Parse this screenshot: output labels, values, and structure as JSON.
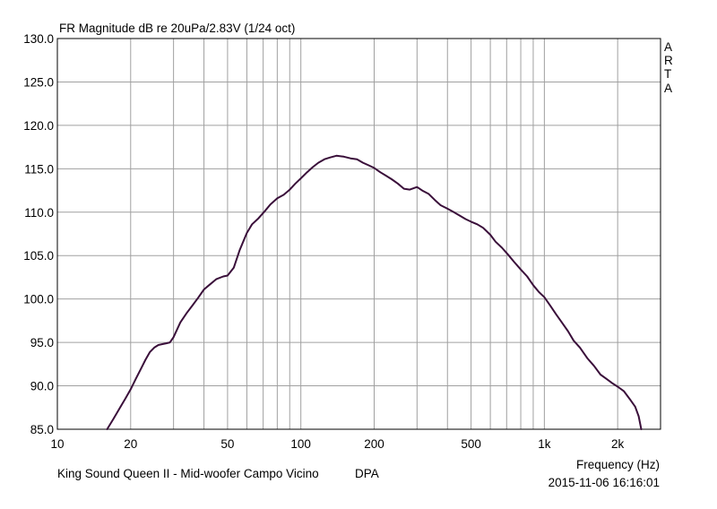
{
  "chart_data": {
    "type": "line",
    "title": "FR Magnitude dB re 20uPa/2.83V (1/24 oct)",
    "xlabel": "Frequency (Hz)",
    "ylabel": "",
    "x_scale": "log",
    "xlim": [
      10,
      3000
    ],
    "ylim": [
      85,
      130
    ],
    "grid": true,
    "x_ticks": [
      10,
      20,
      50,
      100,
      200,
      500,
      1000,
      2000
    ],
    "x_tick_labels": [
      "10",
      "20",
      "50",
      "100",
      "200",
      "500",
      "1k",
      "2k"
    ],
    "y_ticks": [
      85,
      90,
      95,
      100,
      105,
      110,
      115,
      120,
      125,
      130
    ],
    "y_tick_labels": [
      "85.0",
      "90.0",
      "95.0",
      "100.0",
      "105.0",
      "110.0",
      "115.0",
      "120.0",
      "125.0",
      "130.0"
    ],
    "line_color": "#3a0f3a",
    "series": [
      {
        "x": [
          16,
          17,
          18,
          19,
          20,
          21,
          22,
          23,
          24,
          25,
          26,
          27,
          28,
          29,
          30,
          32,
          34,
          36,
          38,
          40,
          42,
          45,
          48,
          50,
          53,
          56,
          60,
          63,
          67,
          71,
          75,
          80,
          85,
          90,
          95,
          100,
          106,
          112,
          118,
          125,
          132,
          140,
          150,
          160,
          170,
          180,
          190,
          200,
          212,
          224,
          236,
          250,
          265,
          280,
          300,
          315,
          335,
          355,
          375,
          400,
          425,
          450,
          475,
          500,
          530,
          560,
          600,
          630,
          670,
          710,
          750,
          800,
          850,
          900,
          950,
          1000,
          1060,
          1120,
          1180,
          1250,
          1320,
          1400,
          1500,
          1600,
          1700,
          1800,
          1900,
          2000,
          2120,
          2240,
          2360,
          2440,
          2500
        ],
        "y": [
          85.0,
          86.2,
          87.4,
          88.5,
          89.6,
          90.8,
          91.9,
          93.0,
          93.9,
          94.4,
          94.7,
          94.8,
          94.9,
          95.0,
          95.6,
          97.3,
          98.4,
          99.3,
          100.2,
          101.1,
          101.6,
          102.3,
          102.6,
          102.7,
          103.6,
          105.6,
          107.6,
          108.6,
          109.3,
          110.1,
          110.9,
          111.6,
          112.0,
          112.6,
          113.3,
          113.9,
          114.6,
          115.2,
          115.7,
          116.1,
          116.3,
          116.5,
          116.4,
          116.2,
          116.1,
          115.7,
          115.4,
          115.1,
          114.6,
          114.2,
          113.8,
          113.3,
          112.7,
          112.6,
          112.9,
          112.5,
          112.1,
          111.4,
          110.8,
          110.4,
          110.0,
          109.6,
          109.2,
          108.9,
          108.6,
          108.2,
          107.4,
          106.6,
          105.9,
          105.1,
          104.3,
          103.4,
          102.6,
          101.6,
          100.8,
          100.2,
          99.2,
          98.2,
          97.3,
          96.3,
          95.2,
          94.4,
          93.2,
          92.3,
          91.3,
          90.8,
          90.3,
          89.9,
          89.4,
          88.5,
          87.6,
          86.5,
          85.0
        ]
      }
    ]
  },
  "side_label": [
    "A",
    "R",
    "T",
    "A"
  ],
  "footer": {
    "device": "King Sound Queen II - Mid-woofer Campo Vicino",
    "mode": "DPA",
    "timestamp": "2015-11-06  16:16:01"
  }
}
